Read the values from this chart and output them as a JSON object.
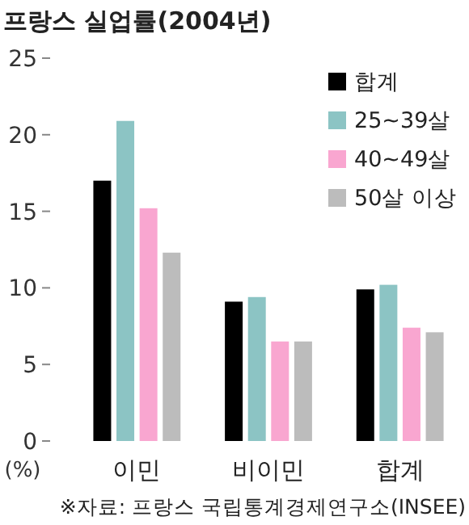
{
  "chart_data": {
    "type": "bar",
    "title": "프랑스 실업률(2004년)",
    "ylabel": "(%)",
    "categories": [
      "이민",
      "비이민",
      "합계"
    ],
    "series": [
      {
        "name": "합계",
        "color": "#000000",
        "values": [
          17.0,
          9.1,
          9.9
        ]
      },
      {
        "name": "25~39살",
        "color": "#8cc4c4",
        "values": [
          20.9,
          9.4,
          10.2
        ]
      },
      {
        "name": "40~49살",
        "color": "#f9a6d0",
        "values": [
          15.2,
          6.5,
          7.4
        ]
      },
      {
        "name": "50살 이상",
        "color": "#bcbcbc",
        "values": [
          12.3,
          6.5,
          7.1
        ]
      }
    ],
    "ylim": [
      0,
      25
    ],
    "yticks": [
      0,
      5,
      10,
      15,
      20,
      25
    ],
    "grid": false,
    "legend": "top right",
    "annotations": [
      "※자료: 프랑스 국립통계경제연구소(INSEE)"
    ]
  }
}
